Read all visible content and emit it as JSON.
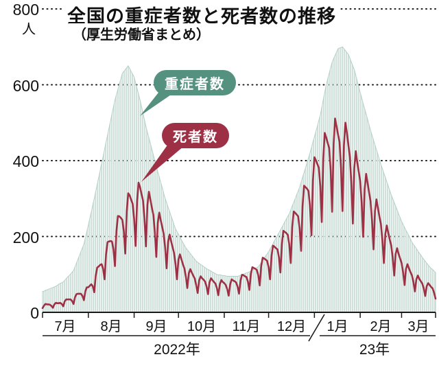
{
  "colors": {
    "severe_pill": "#55917f",
    "deaths_pill": "#9d3044",
    "area_fill": "#cfe1da",
    "area_edge": "#b5d0c7",
    "grid": "#1a1a1a",
    "text": "#111111",
    "background": "#ffffff"
  },
  "chart_data": {
    "type": "area",
    "title": "全国の重症者数と死者数の推移",
    "subtitle": "（厚生労働省まとめ）",
    "ylabel": "人",
    "ylim": [
      0,
      800
    ],
    "y_ticks": [
      0,
      200,
      400,
      600,
      800
    ],
    "y_ticks_desc": [
      "800",
      "600",
      "400",
      "200",
      "0"
    ],
    "grid": "dotted-horizontal",
    "sampling": "daily, 2022-07-01 to 2023-03-24",
    "x_months": [
      "7月",
      "8月",
      "9月",
      "10月",
      "11月",
      "12月",
      "1月",
      "2月",
      "3月"
    ],
    "x_month_days": [
      31,
      31,
      30,
      31,
      30,
      31,
      31,
      28,
      24
    ],
    "x_years": [
      "2022年",
      "23年"
    ],
    "series": [
      {
        "name": "重症者数",
        "type": "area",
        "color": "#cfe1da",
        "values": [
          55,
          56,
          58,
          59,
          61,
          62,
          64,
          65,
          67,
          69,
          71,
          74,
          76,
          78,
          80,
          84,
          89,
          93,
          97,
          101,
          106,
          110,
          120,
          130,
          140,
          150,
          160,
          170,
          180,
          197,
          213,
          230,
          248,
          265,
          283,
          300,
          319,
          337,
          356,
          374,
          393,
          411,
          430,
          449,
          467,
          486,
          504,
          523,
          541,
          560,
          574,
          588,
          602,
          616,
          630,
          635,
          640,
          645,
          650,
          643,
          635,
          628,
          620,
          605,
          590,
          575,
          560,
          543,
          525,
          508,
          490,
          475,
          460,
          445,
          430,
          415,
          400,
          386,
          371,
          357,
          343,
          329,
          314,
          300,
          289,
          277,
          266,
          254,
          243,
          231,
          220,
          213,
          206,
          199,
          191,
          184,
          177,
          170,
          165,
          160,
          155,
          150,
          145,
          140,
          135,
          132,
          129,
          126,
          124,
          121,
          118,
          115,
          113,
          111,
          109,
          106,
          104,
          102,
          100,
          99,
          99,
          98,
          97,
          97,
          96,
          95,
          95,
          95,
          95,
          95,
          95,
          95,
          95,
          96,
          98,
          99,
          101,
          102,
          104,
          105,
          107,
          109,
          111,
          114,
          116,
          118,
          120,
          126,
          131,
          137,
          143,
          149,
          154,
          160,
          167,
          174,
          181,
          189,
          196,
          203,
          210,
          217,
          224,
          231,
          239,
          246,
          253,
          260,
          270,
          280,
          290,
          300,
          310,
          320,
          330,
          343,
          356,
          369,
          381,
          394,
          407,
          420,
          434,
          449,
          463,
          477,
          491,
          506,
          520,
          540,
          560,
          580,
          600,
          615,
          630,
          645,
          660,
          669,
          678,
          686,
          695,
          697,
          698,
          700,
          695,
          690,
          685,
          680,
          670,
          660,
          650,
          640,
          625,
          610,
          595,
          580,
          566,
          551,
          537,
          523,
          509,
          494,
          480,
          467,
          454,
          441,
          429,
          416,
          403,
          390,
          379,
          367,
          356,
          344,
          333,
          321,
          310,
          300,
          290,
          280,
          270,
          260,
          250,
          240,
          232,
          224,
          216,
          209,
          201,
          193,
          185,
          179,
          174,
          168,
          162,
          156,
          151,
          145,
          140,
          135,
          130,
          125,
          120,
          116,
          113,
          109,
          105
        ]
      },
      {
        "name": "死者数",
        "type": "line",
        "color": "#9d3044",
        "values": [
          11,
          18,
          22,
          21,
          21,
          20,
          17,
          12,
          21,
          25,
          24,
          24,
          25,
          22,
          16,
          29,
          34,
          34,
          34,
          34,
          30,
          22,
          40,
          48,
          49,
          49,
          49,
          43,
          32,
          56,
          66,
          66,
          70,
          74,
          69,
          53,
          96,
          118,
          121,
          125,
          127,
          115,
          87,
          153,
          185,
          187,
          188,
          187,
          166,
          122,
          213,
          254,
          253,
          249,
          244,
          214,
          155,
          266,
          314,
          308,
          297,
          286,
          245,
          175,
          294,
          342,
          330,
          312,
          295,
          248,
          174,
          283,
          318,
          297,
          276,
          257,
          212,
          146,
          236,
          263,
          243,
          225,
          207,
          170,
          116,
          186,
          205,
          188,
          172,
          157,
          127,
          87,
          139,
          153,
          140,
          127,
          116,
          94,
          64,
          103,
          114,
          105,
          97,
          89,
          72,
          51,
          84,
          95,
          90,
          86,
          81,
          68,
          48,
          79,
          90,
          85,
          80,
          76,
          64,
          45,
          74,
          85,
          80,
          77,
          72,
          61,
          44,
          74,
          87,
          84,
          82,
          79,
          68,
          49,
          84,
          99,
          98,
          95,
          93,
          81,
          59,
          101,
          119,
          117,
          115,
          112,
          98,
          71,
          122,
          144,
          142,
          139,
          136,
          119,
          87,
          149,
          176,
          173,
          169,
          166,
          145,
          105,
          181,
          215,
          212,
          209,
          204,
          179,
          130,
          224,
          266,
          262,
          258,
          253,
          221,
          162,
          280,
          334,
          330,
          326,
          320,
          281,
          203,
          347,
          409,
          401,
          391,
          381,
          332,
          238,
          404,
          473,
          461,
          447,
          433,
          374,
          265,
          443,
          511,
          490,
          469,
          449,
          382,
          267,
          440,
          500,
          473,
          441,
          410,
          340,
          234,
          380,
          425,
          396,
          371,
          346,
          288,
          199,
          324,
          365,
          341,
          316,
          293,
          241,
          166,
          267,
          298,
          275,
          253,
          233,
          190,
          130,
          207,
          229,
          209,
          192,
          176,
          144,
          97,
          154,
          169,
          154,
          142,
          130,
          106,
          72,
          115,
          127,
          116,
          106,
          98,
          80,
          55,
          87,
          97,
          88,
          82,
          76,
          63,
          43,
          69,
          77,
          72,
          67,
          63,
          52,
          36
        ]
      }
    ]
  }
}
